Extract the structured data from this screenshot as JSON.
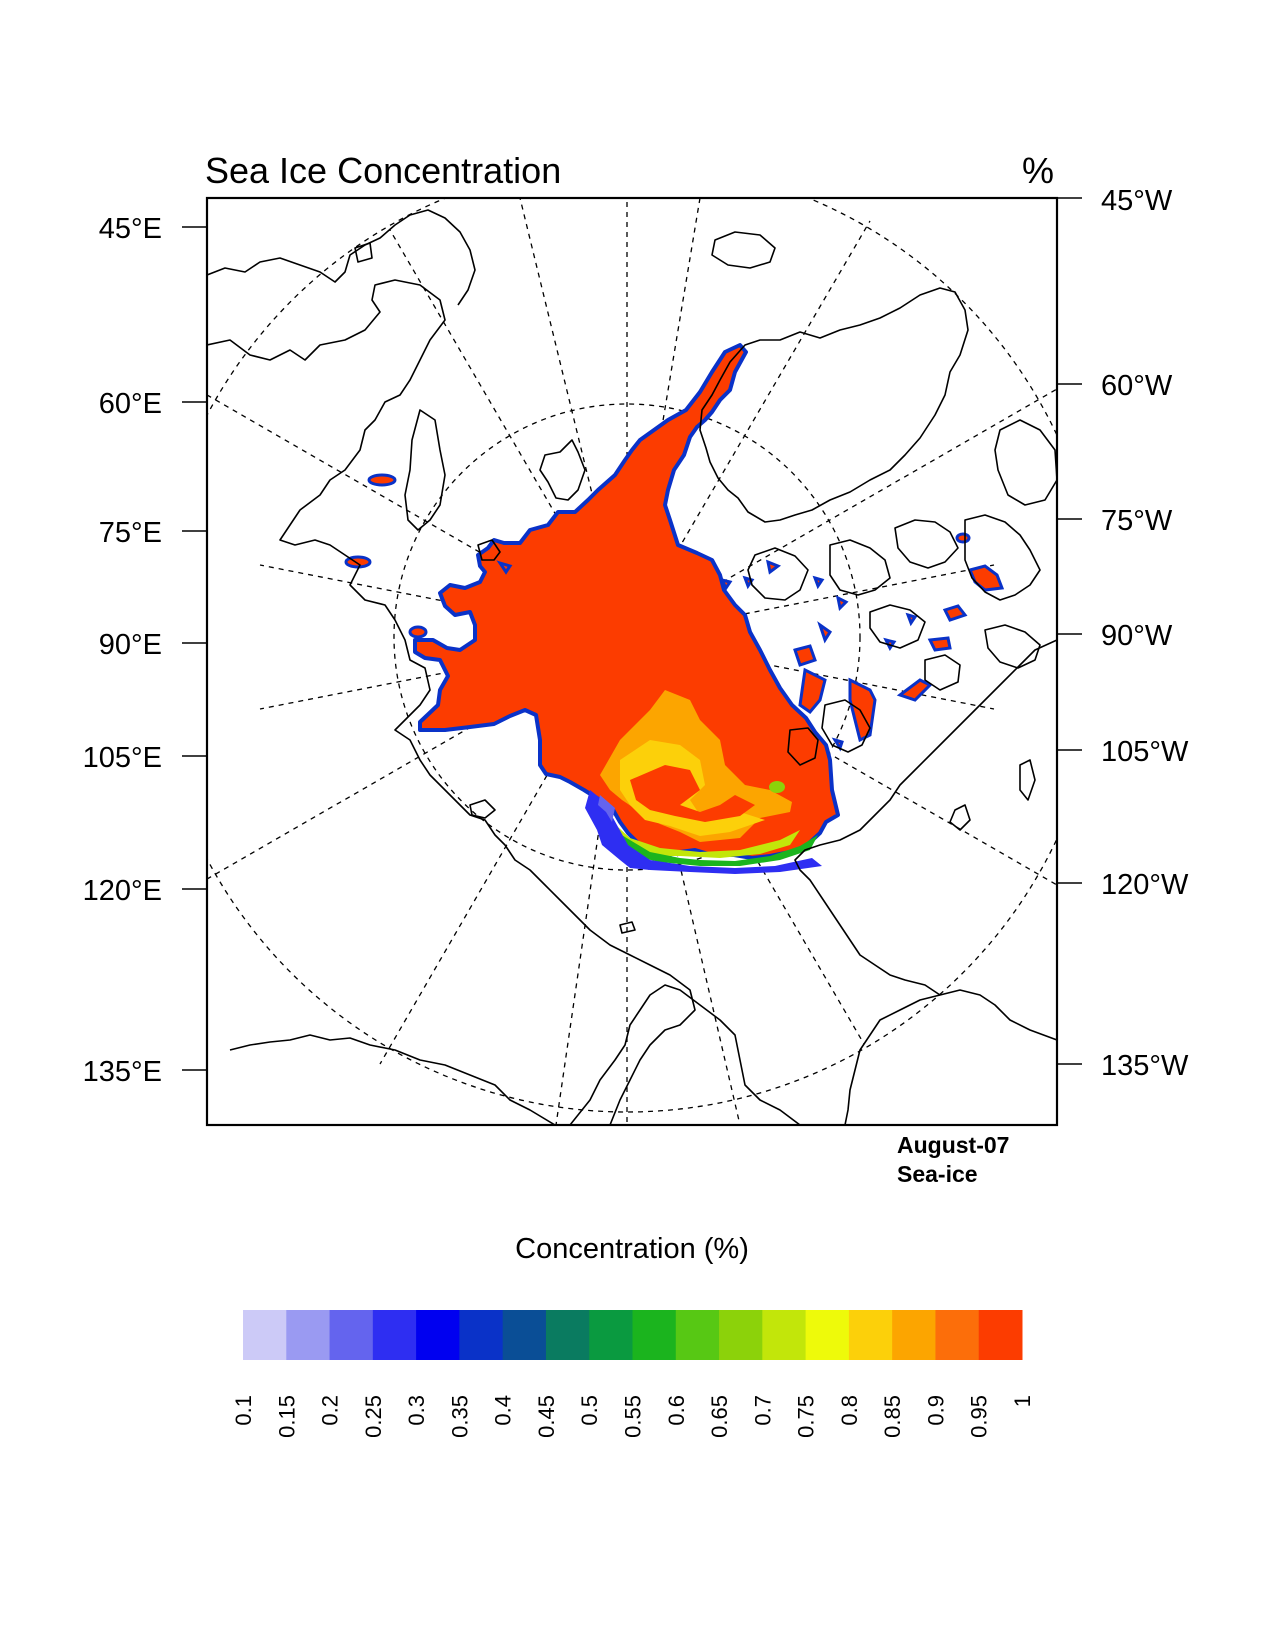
{
  "title": "Sea Ice Concentration",
  "units": "%",
  "left_lon_labels": [
    "45°E",
    "60°E",
    "75°E",
    "90°E",
    "105°E",
    "120°E",
    "135°E"
  ],
  "right_lon_labels": [
    "45°W",
    "60°W",
    "75°W",
    "90°W",
    "105°W",
    "120°W",
    "135°W"
  ],
  "annotation": {
    "line1": "August-07",
    "line2": "Sea-ice"
  },
  "colorbar": {
    "title": "Concentration (%)",
    "levels": [
      "0.1",
      "0.15",
      "0.2",
      "0.25",
      "0.3",
      "0.35",
      "0.4",
      "0.45",
      "0.5",
      "0.55",
      "0.6",
      "0.65",
      "0.7",
      "0.75",
      "0.8",
      "0.85",
      "0.9",
      "0.95",
      "1"
    ],
    "colors": [
      "#cccaf7",
      "#9a9af2",
      "#6464ee",
      "#2e2ef2",
      "#0000f0",
      "#0a32c8",
      "#0a4e96",
      "#0a7b60",
      "#0a9a40",
      "#1bb41e",
      "#57c814",
      "#8cd20a",
      "#c2e60a",
      "#eefa0a",
      "#fcd00a",
      "#fca500",
      "#fc6e0a",
      "#fc3c00"
    ]
  },
  "chart_data": {
    "type": "heatmap",
    "title": "Sea Ice Concentration",
    "units": "%",
    "projection": "north polar stereographic",
    "colorbar_levels": [
      0.1,
      0.15,
      0.2,
      0.25,
      0.3,
      0.35,
      0.4,
      0.45,
      0.5,
      0.55,
      0.6,
      0.65,
      0.7,
      0.75,
      0.8,
      0.85,
      0.9,
      0.95,
      1
    ],
    "dominant_value": 1,
    "ice_edge_values": [
      0.7,
      0.8,
      0.9,
      0.95,
      0.3
    ]
  }
}
